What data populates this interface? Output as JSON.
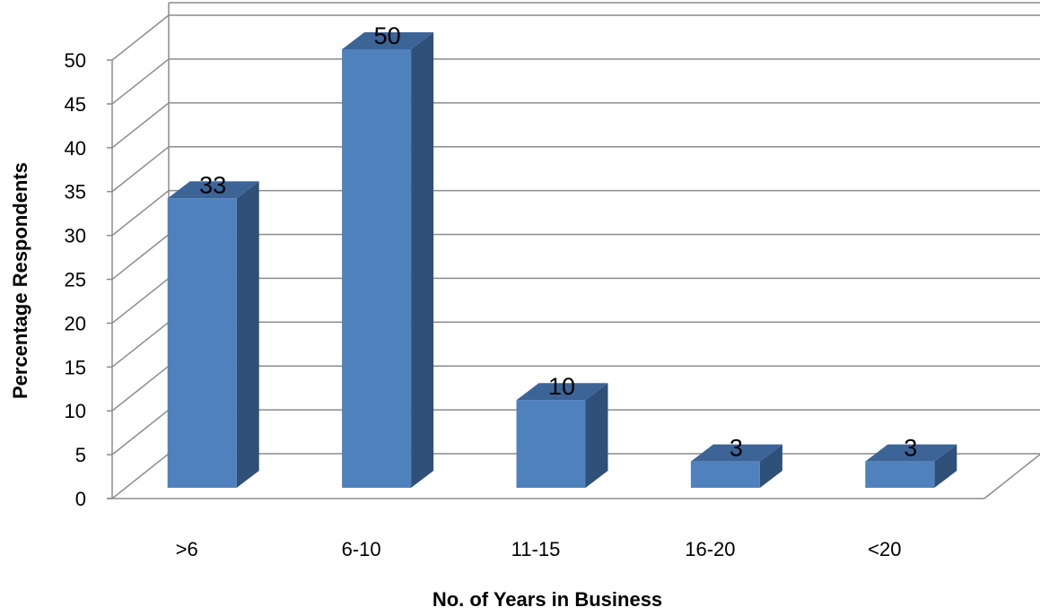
{
  "chart_data": {
    "type": "bar",
    "style": "3d-column",
    "categories": [
      ">6",
      "6-10",
      "11-15",
      "16-20",
      "<20"
    ],
    "series": [
      {
        "values": [
          33,
          50,
          10,
          3,
          3
        ],
        "color": "#4f81bd"
      }
    ],
    "data_labels": [
      "33",
      "50",
      "10",
      "3",
      "3"
    ],
    "xlabel": "No. of Years in Business",
    "ylabel": "Percentage Respondents",
    "ylim": [
      0,
      50
    ],
    "yticks": [
      0,
      5,
      10,
      15,
      20,
      25,
      30,
      35,
      40,
      45,
      50
    ],
    "grid": true,
    "legend": "none"
  }
}
